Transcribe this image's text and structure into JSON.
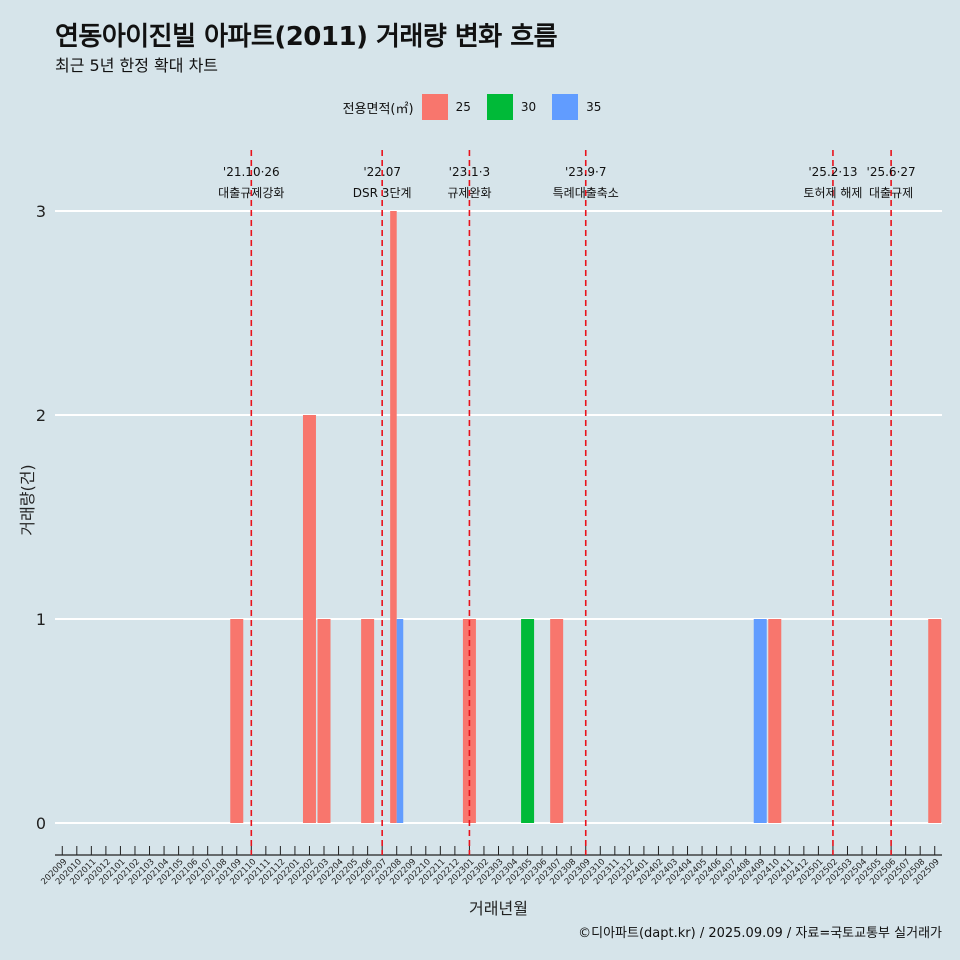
{
  "title": "연동아이진빌 아파트(2011) 거래량 변화 흐름",
  "subtitle": "최근 5년 한정 확대 차트",
  "caption": "©디아파트(dapt.kr) / 2025.09.09 / 자료=국토교통부 실거래가",
  "chart_data": {
    "type": "bar",
    "xlabel": "거래년월",
    "ylabel": "거래량(건)",
    "ylim": [
      0,
      3
    ],
    "yticks": [
      0,
      1,
      2,
      3
    ],
    "grid": true,
    "legend": {
      "title": "전용면적(㎡)",
      "position": "top-center",
      "entries": [
        {
          "name": "25",
          "color": "#F8766D"
        },
        {
          "name": "30",
          "color": "#00BA38"
        },
        {
          "name": "35",
          "color": "#619CFF"
        }
      ]
    },
    "categories": [
      "202009",
      "202010",
      "202011",
      "202012",
      "202101",
      "202102",
      "202103",
      "202104",
      "202105",
      "202106",
      "202107",
      "202108",
      "202109",
      "202110",
      "202111",
      "202112",
      "202201",
      "202202",
      "202203",
      "202204",
      "202205",
      "202206",
      "202207",
      "202208",
      "202209",
      "202210",
      "202211",
      "202212",
      "202301",
      "202302",
      "202303",
      "202304",
      "202305",
      "202306",
      "202307",
      "202308",
      "202309",
      "202310",
      "202311",
      "202312",
      "202401",
      "202402",
      "202403",
      "202404",
      "202405",
      "202406",
      "202407",
      "202408",
      "202409",
      "202410",
      "202411",
      "202412",
      "202501",
      "202502",
      "202503",
      "202504",
      "202505",
      "202506",
      "202507",
      "202508",
      "202509"
    ],
    "series": [
      {
        "name": "25",
        "color": "#F8766D",
        "points": [
          {
            "x": "202109",
            "y": 1
          },
          {
            "x": "202202",
            "y": 2
          },
          {
            "x": "202203",
            "y": 1
          },
          {
            "x": "202206",
            "y": 1
          },
          {
            "x": "202208",
            "y": 3
          },
          {
            "x": "202301",
            "y": 1
          },
          {
            "x": "202307",
            "y": 1
          },
          {
            "x": "202410",
            "y": 1
          },
          {
            "x": "202509",
            "y": 1
          }
        ]
      },
      {
        "name": "30",
        "color": "#00BA38",
        "points": [
          {
            "x": "202305",
            "y": 1
          }
        ]
      },
      {
        "name": "35",
        "color": "#619CFF",
        "points": [
          {
            "x": "202208",
            "y": 1
          },
          {
            "x": "202409",
            "y": 1
          }
        ]
      }
    ],
    "annotations": [
      {
        "x": "202110",
        "date": "'21.10·26",
        "label": "대출규제강화"
      },
      {
        "x": "202207",
        "date": "'22.07",
        "label": "DSR 3단계"
      },
      {
        "x": "202301",
        "date": "'23.1·3",
        "label": "규제완화"
      },
      {
        "x": "202309",
        "date": "'23.9·7",
        "label": "특례대출축소"
      },
      {
        "x": "202502",
        "date": "'25.2·13",
        "label": "토허제 해제"
      },
      {
        "x": "202506",
        "date": "'25.6·27",
        "label": "대출규제"
      }
    ]
  }
}
